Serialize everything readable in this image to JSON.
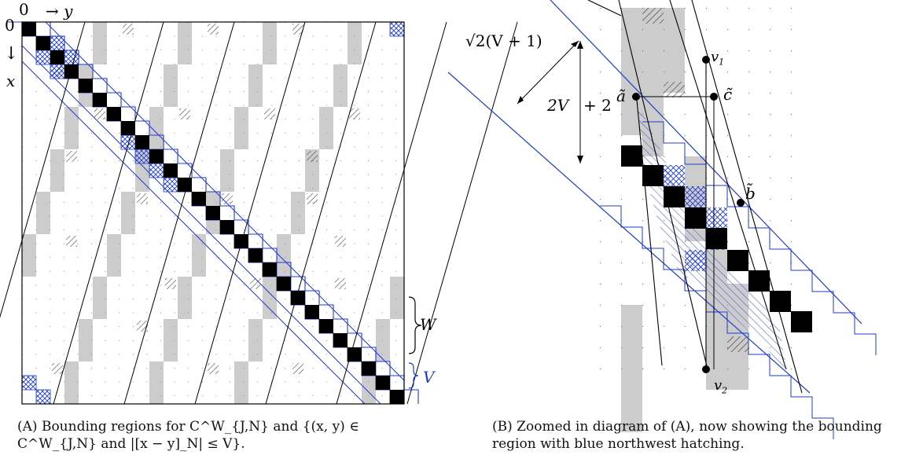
{
  "colors": {
    "blue": "#1f3bd1",
    "gray": "#cccccc",
    "black": "#000000",
    "grid_dots": "#888888"
  },
  "panel_a": {
    "label_origin_row": "0",
    "label_origin_col": "0",
    "arrow_y": "→ y",
    "arrow_x_glyph": "↓",
    "label_x": "x",
    "label_W": "W",
    "label_V": "V",
    "caption_tag": "(A)",
    "caption_text": "Bounding regions for C^W_{J,N} and {(x, y) ∈ C^W_{J,N} and |[x − y]_N| ≤ V}."
  },
  "panel_b": {
    "label_sqrt": "√2(V + 1)",
    "label_2v": "2V",
    "label_plus2": "+ 2",
    "label_a": "ã",
    "label_c": "c̃",
    "label_b": "b̃",
    "label_v1": "v",
    "label_v1_sub": "1",
    "label_v2": "v",
    "label_v2_sub": "2",
    "caption_tag": "(B)",
    "caption_text": "Zoomed in diagram of (A), now showing the bounding region with blue northwest hatching."
  }
}
